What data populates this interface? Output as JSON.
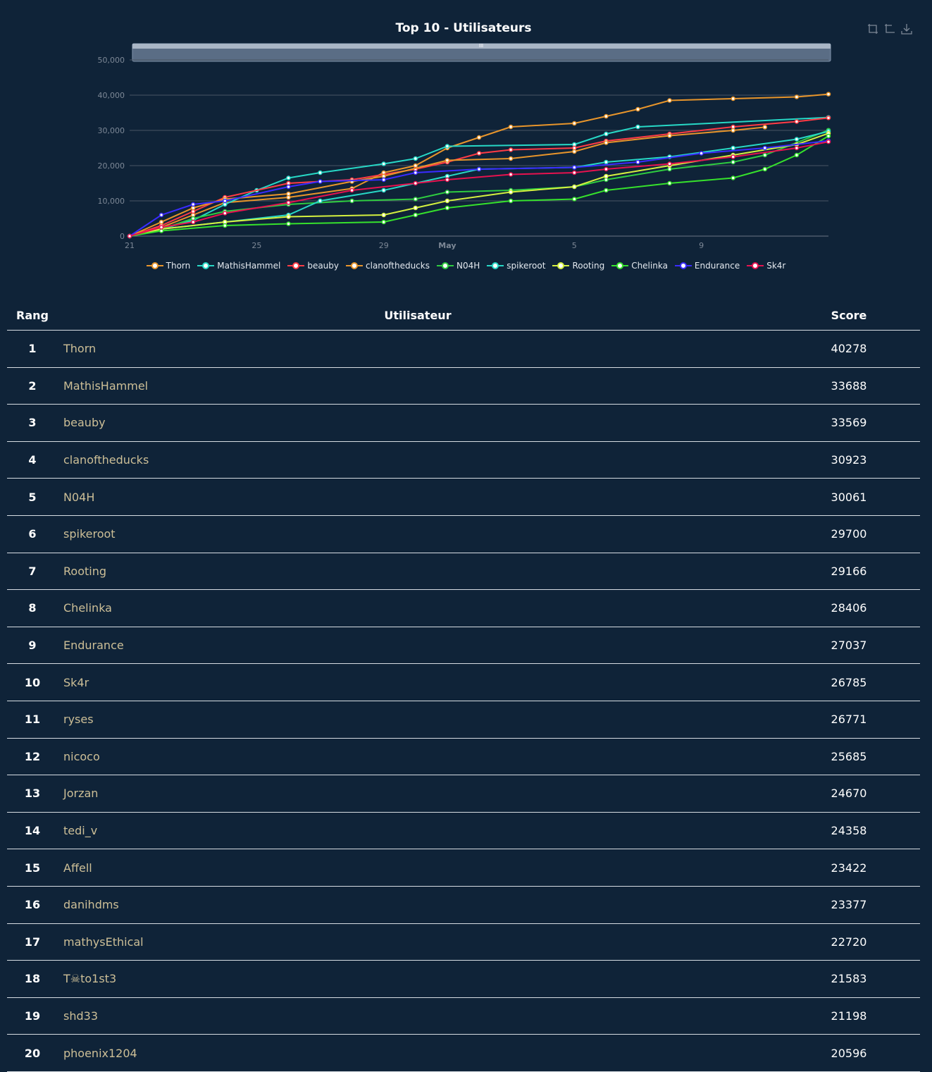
{
  "chart_data": {
    "type": "line",
    "title": "Top 10 - Utilisateurs",
    "x_ticks": [
      "21",
      "25",
      "29",
      "May",
      "5",
      "9"
    ],
    "y_ticks": [
      "0",
      "10,000",
      "20,000",
      "30,000",
      "40,000",
      "50,000"
    ],
    "ylim": [
      0,
      50000
    ],
    "xlim": [
      "2024-04-21",
      "2024-05-13"
    ],
    "grid": true,
    "legend_placement": "bottom",
    "series": [
      {
        "name": "Thorn",
        "color": "#e8952b",
        "points": [
          [
            "2024-04-21",
            0
          ],
          [
            "2024-04-22",
            2500
          ],
          [
            "2024-04-23",
            6000
          ],
          [
            "2024-04-24",
            9500
          ],
          [
            "2024-04-26",
            11000
          ],
          [
            "2024-04-28",
            13500
          ],
          [
            "2024-04-29",
            18000
          ],
          [
            "2024-04-30",
            20000
          ],
          [
            "2024-05-01",
            25000
          ],
          [
            "2024-05-02",
            28000
          ],
          [
            "2024-05-03",
            31000
          ],
          [
            "2024-05-05",
            32000
          ],
          [
            "2024-05-06",
            34000
          ],
          [
            "2024-05-07",
            36000
          ],
          [
            "2024-05-08",
            38500
          ],
          [
            "2024-05-10",
            39000
          ],
          [
            "2024-05-12",
            39500
          ],
          [
            "2024-05-13",
            40278
          ]
        ]
      },
      {
        "name": "MathisHammel",
        "color": "#27d8c6",
        "points": [
          [
            "2024-04-21",
            0
          ],
          [
            "2024-04-22",
            2000
          ],
          [
            "2024-04-23",
            4500
          ],
          [
            "2024-04-24",
            9000
          ],
          [
            "2024-04-25",
            13000
          ],
          [
            "2024-04-26",
            16500
          ],
          [
            "2024-04-27",
            18000
          ],
          [
            "2024-04-29",
            20500
          ],
          [
            "2024-04-30",
            22000
          ],
          [
            "2024-05-01",
            25500
          ],
          [
            "2024-05-05",
            26000
          ],
          [
            "2024-05-06",
            29000
          ],
          [
            "2024-05-07",
            31000
          ],
          [
            "2024-05-13",
            33688
          ]
        ]
      },
      {
        "name": "beauby",
        "color": "#ff3b45",
        "points": [
          [
            "2024-04-21",
            0
          ],
          [
            "2024-04-22",
            3000
          ],
          [
            "2024-04-23",
            7000
          ],
          [
            "2024-04-24",
            11000
          ],
          [
            "2024-04-26",
            15000
          ],
          [
            "2024-04-28",
            16000
          ],
          [
            "2024-04-30",
            19000
          ],
          [
            "2024-05-01",
            21000
          ],
          [
            "2024-05-02",
            23500
          ],
          [
            "2024-05-03",
            24500
          ],
          [
            "2024-05-05",
            25000
          ],
          [
            "2024-05-06",
            27000
          ],
          [
            "2024-05-08",
            29000
          ],
          [
            "2024-05-10",
            31000
          ],
          [
            "2024-05-12",
            32500
          ],
          [
            "2024-05-13",
            33569
          ]
        ]
      },
      {
        "name": "clanoftheducks",
        "color": "#e8952b",
        "points": [
          [
            "2024-04-21",
            0
          ],
          [
            "2024-04-22",
            4000
          ],
          [
            "2024-04-23",
            8000
          ],
          [
            "2024-04-24",
            10500
          ],
          [
            "2024-04-26",
            12000
          ],
          [
            "2024-04-28",
            15500
          ],
          [
            "2024-04-29",
            17000
          ],
          [
            "2024-05-01",
            21500
          ],
          [
            "2024-05-03",
            22000
          ],
          [
            "2024-05-05",
            24000
          ],
          [
            "2024-05-06",
            26500
          ],
          [
            "2024-05-08",
            28500
          ],
          [
            "2024-05-10",
            30000
          ],
          [
            "2024-05-11",
            30923
          ]
        ]
      },
      {
        "name": "N04H",
        "color": "#2ecc40",
        "points": [
          [
            "2024-04-21",
            0
          ],
          [
            "2024-04-22",
            2000
          ],
          [
            "2024-04-23",
            5000
          ],
          [
            "2024-04-24",
            7000
          ],
          [
            "2024-04-26",
            9000
          ],
          [
            "2024-04-28",
            10000
          ],
          [
            "2024-04-30",
            10500
          ],
          [
            "2024-05-01",
            12500
          ],
          [
            "2024-05-03",
            13000
          ],
          [
            "2024-05-05",
            14000
          ],
          [
            "2024-05-06",
            16000
          ],
          [
            "2024-05-08",
            19000
          ],
          [
            "2024-05-10",
            21000
          ],
          [
            "2024-05-11",
            23000
          ],
          [
            "2024-05-13",
            30061
          ]
        ]
      },
      {
        "name": "spikeroot",
        "color": "#27d8c6",
        "points": [
          [
            "2024-04-21",
            0
          ],
          [
            "2024-04-22",
            2000
          ],
          [
            "2024-04-24",
            4000
          ],
          [
            "2024-04-26",
            6000
          ],
          [
            "2024-04-27",
            10000
          ],
          [
            "2024-04-29",
            13000
          ],
          [
            "2024-05-01",
            17000
          ],
          [
            "2024-05-02",
            19000
          ],
          [
            "2024-05-05",
            19500
          ],
          [
            "2024-05-06",
            21000
          ],
          [
            "2024-05-08",
            22500
          ],
          [
            "2024-05-10",
            25000
          ],
          [
            "2024-05-12",
            27500
          ],
          [
            "2024-05-13",
            29700
          ]
        ]
      },
      {
        "name": "Rooting",
        "color": "#d4f03f",
        "points": [
          [
            "2024-04-21",
            0
          ],
          [
            "2024-04-22",
            2000
          ],
          [
            "2024-04-24",
            4000
          ],
          [
            "2024-04-26",
            5500
          ],
          [
            "2024-04-29",
            6000
          ],
          [
            "2024-04-30",
            8000
          ],
          [
            "2024-05-01",
            10000
          ],
          [
            "2024-05-03",
            12500
          ],
          [
            "2024-05-05",
            14000
          ],
          [
            "2024-05-06",
            17000
          ],
          [
            "2024-05-08",
            20000
          ],
          [
            "2024-05-10",
            23000
          ],
          [
            "2024-05-12",
            26000
          ],
          [
            "2024-05-13",
            29166
          ]
        ]
      },
      {
        "name": "Chelinka",
        "color": "#36e12c",
        "points": [
          [
            "2024-04-21",
            0
          ],
          [
            "2024-04-22",
            1500
          ],
          [
            "2024-04-24",
            3000
          ],
          [
            "2024-04-26",
            3500
          ],
          [
            "2024-04-29",
            4000
          ],
          [
            "2024-04-30",
            6000
          ],
          [
            "2024-05-01",
            8000
          ],
          [
            "2024-05-03",
            10000
          ],
          [
            "2024-05-05",
            10500
          ],
          [
            "2024-05-06",
            13000
          ],
          [
            "2024-05-08",
            15000
          ],
          [
            "2024-05-10",
            16500
          ],
          [
            "2024-05-11",
            19000
          ],
          [
            "2024-05-12",
            23000
          ],
          [
            "2024-05-13",
            28406
          ]
        ]
      },
      {
        "name": "Endurance",
        "color": "#3a2bff",
        "points": [
          [
            "2024-04-21",
            0
          ],
          [
            "2024-04-22",
            6000
          ],
          [
            "2024-04-23",
            9000
          ],
          [
            "2024-04-24",
            10000
          ],
          [
            "2024-04-26",
            14000
          ],
          [
            "2024-04-27",
            15500
          ],
          [
            "2024-04-29",
            16000
          ],
          [
            "2024-04-30",
            18000
          ],
          [
            "2024-05-02",
            19000
          ],
          [
            "2024-05-05",
            19500
          ],
          [
            "2024-05-07",
            21000
          ],
          [
            "2024-05-09",
            23500
          ],
          [
            "2024-05-11",
            25000
          ],
          [
            "2024-05-13",
            27037
          ]
        ]
      },
      {
        "name": "Sk4r",
        "color": "#e6124f",
        "points": [
          [
            "2024-04-21",
            0
          ],
          [
            "2024-04-22",
            2500
          ],
          [
            "2024-04-23",
            4000
          ],
          [
            "2024-04-24",
            6500
          ],
          [
            "2024-04-26",
            9500
          ],
          [
            "2024-04-28",
            13000
          ],
          [
            "2024-04-30",
            15000
          ],
          [
            "2024-05-01",
            16000
          ],
          [
            "2024-05-03",
            17500
          ],
          [
            "2024-05-05",
            18000
          ],
          [
            "2024-05-06",
            19000
          ],
          [
            "2024-05-08",
            20500
          ],
          [
            "2024-05-10",
            22500
          ],
          [
            "2024-05-12",
            25000
          ],
          [
            "2024-05-13",
            26785
          ]
        ]
      }
    ]
  },
  "table": {
    "headers": {
      "rank": "Rang",
      "user": "Utilisateur",
      "score": "Score"
    },
    "rows": [
      {
        "rank": "1",
        "user": "Thorn",
        "score": "40278"
      },
      {
        "rank": "2",
        "user": "MathisHammel",
        "score": "33688"
      },
      {
        "rank": "3",
        "user": "beauby",
        "score": "33569"
      },
      {
        "rank": "4",
        "user": "clanoftheducks",
        "score": "30923"
      },
      {
        "rank": "5",
        "user": "N04H",
        "score": "30061"
      },
      {
        "rank": "6",
        "user": "spikeroot",
        "score": "29700"
      },
      {
        "rank": "7",
        "user": "Rooting",
        "score": "29166"
      },
      {
        "rank": "8",
        "user": "Chelinka",
        "score": "28406"
      },
      {
        "rank": "9",
        "user": "Endurance",
        "score": "27037"
      },
      {
        "rank": "10",
        "user": "Sk4r",
        "score": "26785"
      },
      {
        "rank": "11",
        "user": "ryses",
        "score": "26771"
      },
      {
        "rank": "12",
        "user": "nicoco",
        "score": "25685"
      },
      {
        "rank": "13",
        "user": "Jorzan",
        "score": "24670"
      },
      {
        "rank": "14",
        "user": "tedi_v",
        "score": "24358"
      },
      {
        "rank": "15",
        "user": "Affell",
        "score": "23422"
      },
      {
        "rank": "16",
        "user": "danihdms",
        "score": "23377"
      },
      {
        "rank": "17",
        "user": "mathysEthical",
        "score": "22720"
      },
      {
        "rank": "18",
        "user": "T☠to1st3",
        "score": "21583"
      },
      {
        "rank": "19",
        "user": "shd33",
        "score": "21198"
      },
      {
        "rank": "20",
        "user": "phoenix1204",
        "score": "20596"
      }
    ]
  },
  "toolbox": {
    "icons": [
      "zoom-icon",
      "zoom-reset-icon",
      "download-icon"
    ]
  },
  "colors": {
    "background": "#0f2338",
    "username": "#cdbf97",
    "grid": "#4a5663"
  }
}
